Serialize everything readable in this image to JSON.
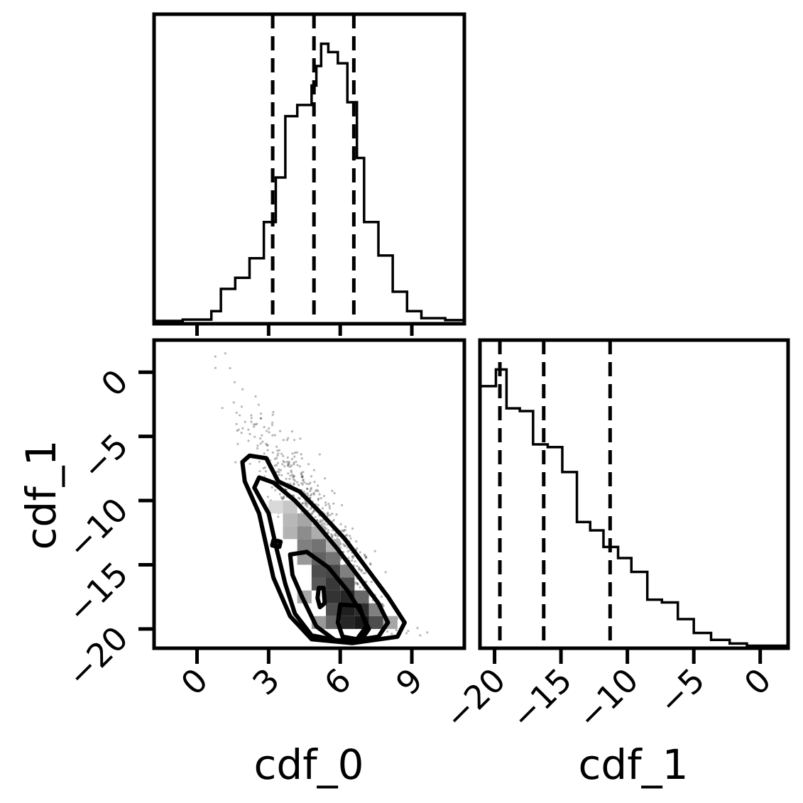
{
  "chart_data": [
    {
      "type": "histogram",
      "panel": "marginal cdf_0",
      "xlim": [
        -1.8,
        11.2
      ],
      "bin_edges": [
        -1.8,
        -0.6,
        0.6,
        1.0,
        1.6,
        2.2,
        2.8,
        3.3,
        3.7,
        4.2,
        4.8,
        5.0,
        5.2,
        5.5,
        5.9,
        6.3,
        6.7,
        7.0,
        7.6,
        8.2,
        8.8,
        9.4,
        10.4,
        11.2
      ],
      "heights": [
        0.005,
        0.01,
        0.04,
        0.12,
        0.16,
        0.23,
        0.36,
        0.52,
        0.74,
        0.78,
        0.85,
        0.92,
        1.0,
        0.97,
        0.93,
        0.79,
        0.59,
        0.36,
        0.24,
        0.11,
        0.04,
        0.015,
        0.008
      ],
      "quantile_lines": [
        3.17,
        4.9,
        6.57
      ],
      "xticks": [
        0,
        3,
        6,
        9
      ]
    },
    {
      "type": "scatter_contour",
      "panel": "joint cdf_0 vs cdf_1",
      "xlabel": "cdf_0",
      "ylabel": "cdf_1",
      "xlim": [
        -1.8,
        11.2
      ],
      "ylim": [
        -21.5,
        2.5
      ],
      "xticks": [
        "0",
        "3",
        "6",
        "9"
      ],
      "yticks": [
        "0",
        "−5",
        "−10",
        "−15",
        "−20"
      ],
      "point_cloud": {
        "n": 650,
        "x_center": 4.9,
        "y_slope": -2.6,
        "y_intercept": 1.5,
        "y_floor": -20.5
      },
      "density_cells": [
        [
          3.0,
          -10.5,
          0.15
        ],
        [
          3.6,
          -10.5,
          0.22
        ],
        [
          3.6,
          -11.5,
          0.28
        ],
        [
          4.2,
          -11.5,
          0.35
        ],
        [
          3.6,
          -12.5,
          0.3
        ],
        [
          4.2,
          -12.5,
          0.45
        ],
        [
          4.8,
          -12.5,
          0.32
        ],
        [
          4.2,
          -13.5,
          0.5
        ],
        [
          4.8,
          -13.5,
          0.55
        ],
        [
          5.4,
          -13.5,
          0.3
        ],
        [
          4.2,
          -14.5,
          0.4
        ],
        [
          4.8,
          -14.5,
          0.62
        ],
        [
          5.4,
          -14.5,
          0.55
        ],
        [
          4.8,
          -15.5,
          0.7
        ],
        [
          5.4,
          -15.5,
          0.72
        ],
        [
          6.0,
          -15.5,
          0.5
        ],
        [
          4.8,
          -16.5,
          0.65
        ],
        [
          5.4,
          -16.5,
          0.78
        ],
        [
          6.0,
          -16.5,
          0.7
        ],
        [
          5.4,
          -17.5,
          0.8
        ],
        [
          6.0,
          -17.5,
          0.85
        ],
        [
          6.6,
          -17.5,
          0.6
        ],
        [
          5.4,
          -18.5,
          0.7
        ],
        [
          6.0,
          -18.5,
          0.88
        ],
        [
          6.6,
          -18.5,
          0.82
        ],
        [
          7.2,
          -18.5,
          0.5
        ],
        [
          6.0,
          -19.5,
          0.85
        ],
        [
          6.6,
          -19.5,
          0.9
        ],
        [
          7.2,
          -19.5,
          0.7
        ],
        [
          4.8,
          -19.5,
          0.4
        ],
        [
          5.4,
          -19.5,
          0.6
        ],
        [
          4.2,
          -17.5,
          0.35
        ],
        [
          7.8,
          -19.5,
          0.35
        ]
      ],
      "contours": [
        [
          [
            2.2,
            -6.5
          ],
          [
            2.9,
            -6.7
          ],
          [
            3.4,
            -8.5
          ],
          [
            4.3,
            -9.3
          ],
          [
            5.2,
            -11.0
          ],
          [
            6.2,
            -13.0
          ],
          [
            7.2,
            -15.5
          ],
          [
            8.0,
            -17.5
          ],
          [
            8.7,
            -19.5
          ],
          [
            8.4,
            -20.6
          ],
          [
            6.5,
            -21.1
          ],
          [
            4.8,
            -20.8
          ],
          [
            3.9,
            -19.0
          ],
          [
            3.2,
            -16.0
          ],
          [
            2.9,
            -13.5
          ],
          [
            2.6,
            -11.0
          ],
          [
            2.0,
            -8.5
          ],
          [
            1.9,
            -7.0
          ]
        ],
        [
          [
            2.6,
            -8.2
          ],
          [
            3.2,
            -8.6
          ],
          [
            4.1,
            -10.0
          ],
          [
            5.0,
            -11.8
          ],
          [
            5.9,
            -13.8
          ],
          [
            6.8,
            -16.0
          ],
          [
            7.6,
            -18.0
          ],
          [
            8.0,
            -19.5
          ],
          [
            7.6,
            -20.6
          ],
          [
            6.2,
            -21.0
          ],
          [
            4.8,
            -20.5
          ],
          [
            4.1,
            -18.8
          ],
          [
            3.7,
            -16.5
          ],
          [
            3.3,
            -13.5
          ],
          [
            3.0,
            -11.0
          ],
          [
            2.4,
            -9.0
          ]
        ],
        [
          [
            3.9,
            -14.2
          ],
          [
            4.6,
            -14.0
          ],
          [
            5.5,
            -15.2
          ],
          [
            6.3,
            -17.0
          ],
          [
            6.9,
            -18.8
          ],
          [
            7.2,
            -20.0
          ],
          [
            6.9,
            -20.8
          ],
          [
            5.8,
            -20.9
          ],
          [
            5.0,
            -19.8
          ],
          [
            4.4,
            -17.5
          ],
          [
            4.0,
            -15.8
          ]
        ],
        [
          [
            6.0,
            -18.1
          ],
          [
            6.8,
            -18.2
          ],
          [
            7.1,
            -19.8
          ],
          [
            6.7,
            -20.8
          ],
          [
            6.1,
            -20.6
          ],
          [
            5.9,
            -19.5
          ]
        ],
        [
          [
            3.2,
            -13.1
          ],
          [
            3.5,
            -13.2
          ],
          [
            3.45,
            -13.6
          ],
          [
            3.15,
            -13.5
          ]
        ],
        [
          [
            5.1,
            -16.8
          ],
          [
            5.3,
            -16.8
          ],
          [
            5.35,
            -18.0
          ],
          [
            5.15,
            -18.3
          ],
          [
            5.05,
            -17.6
          ]
        ]
      ]
    },
    {
      "type": "histogram",
      "panel": "marginal cdf_1",
      "xlabel": "cdf_1",
      "xlim": [
        -21.1,
        2.1
      ],
      "bin_edges": [
        -21.1,
        -19.9,
        -19.1,
        -18.1,
        -17.1,
        -16.0,
        -14.9,
        -13.8,
        -12.8,
        -11.8,
        -10.7,
        -9.7,
        -8.5,
        -7.4,
        -6.2,
        -5.0,
        -3.7,
        -2.3,
        -1.0,
        2.1
      ],
      "heights": [
        0.94,
        1.0,
        0.86,
        0.85,
        0.73,
        0.72,
        0.63,
        0.45,
        0.42,
        0.36,
        0.32,
        0.27,
        0.17,
        0.16,
        0.1,
        0.05,
        0.025,
        0.012,
        0.004
      ],
      "quantile_lines": [
        -19.6,
        -16.3,
        -11.3
      ],
      "xticks": [
        "−20",
        "−15",
        "−10",
        "−5",
        "0"
      ]
    }
  ]
}
